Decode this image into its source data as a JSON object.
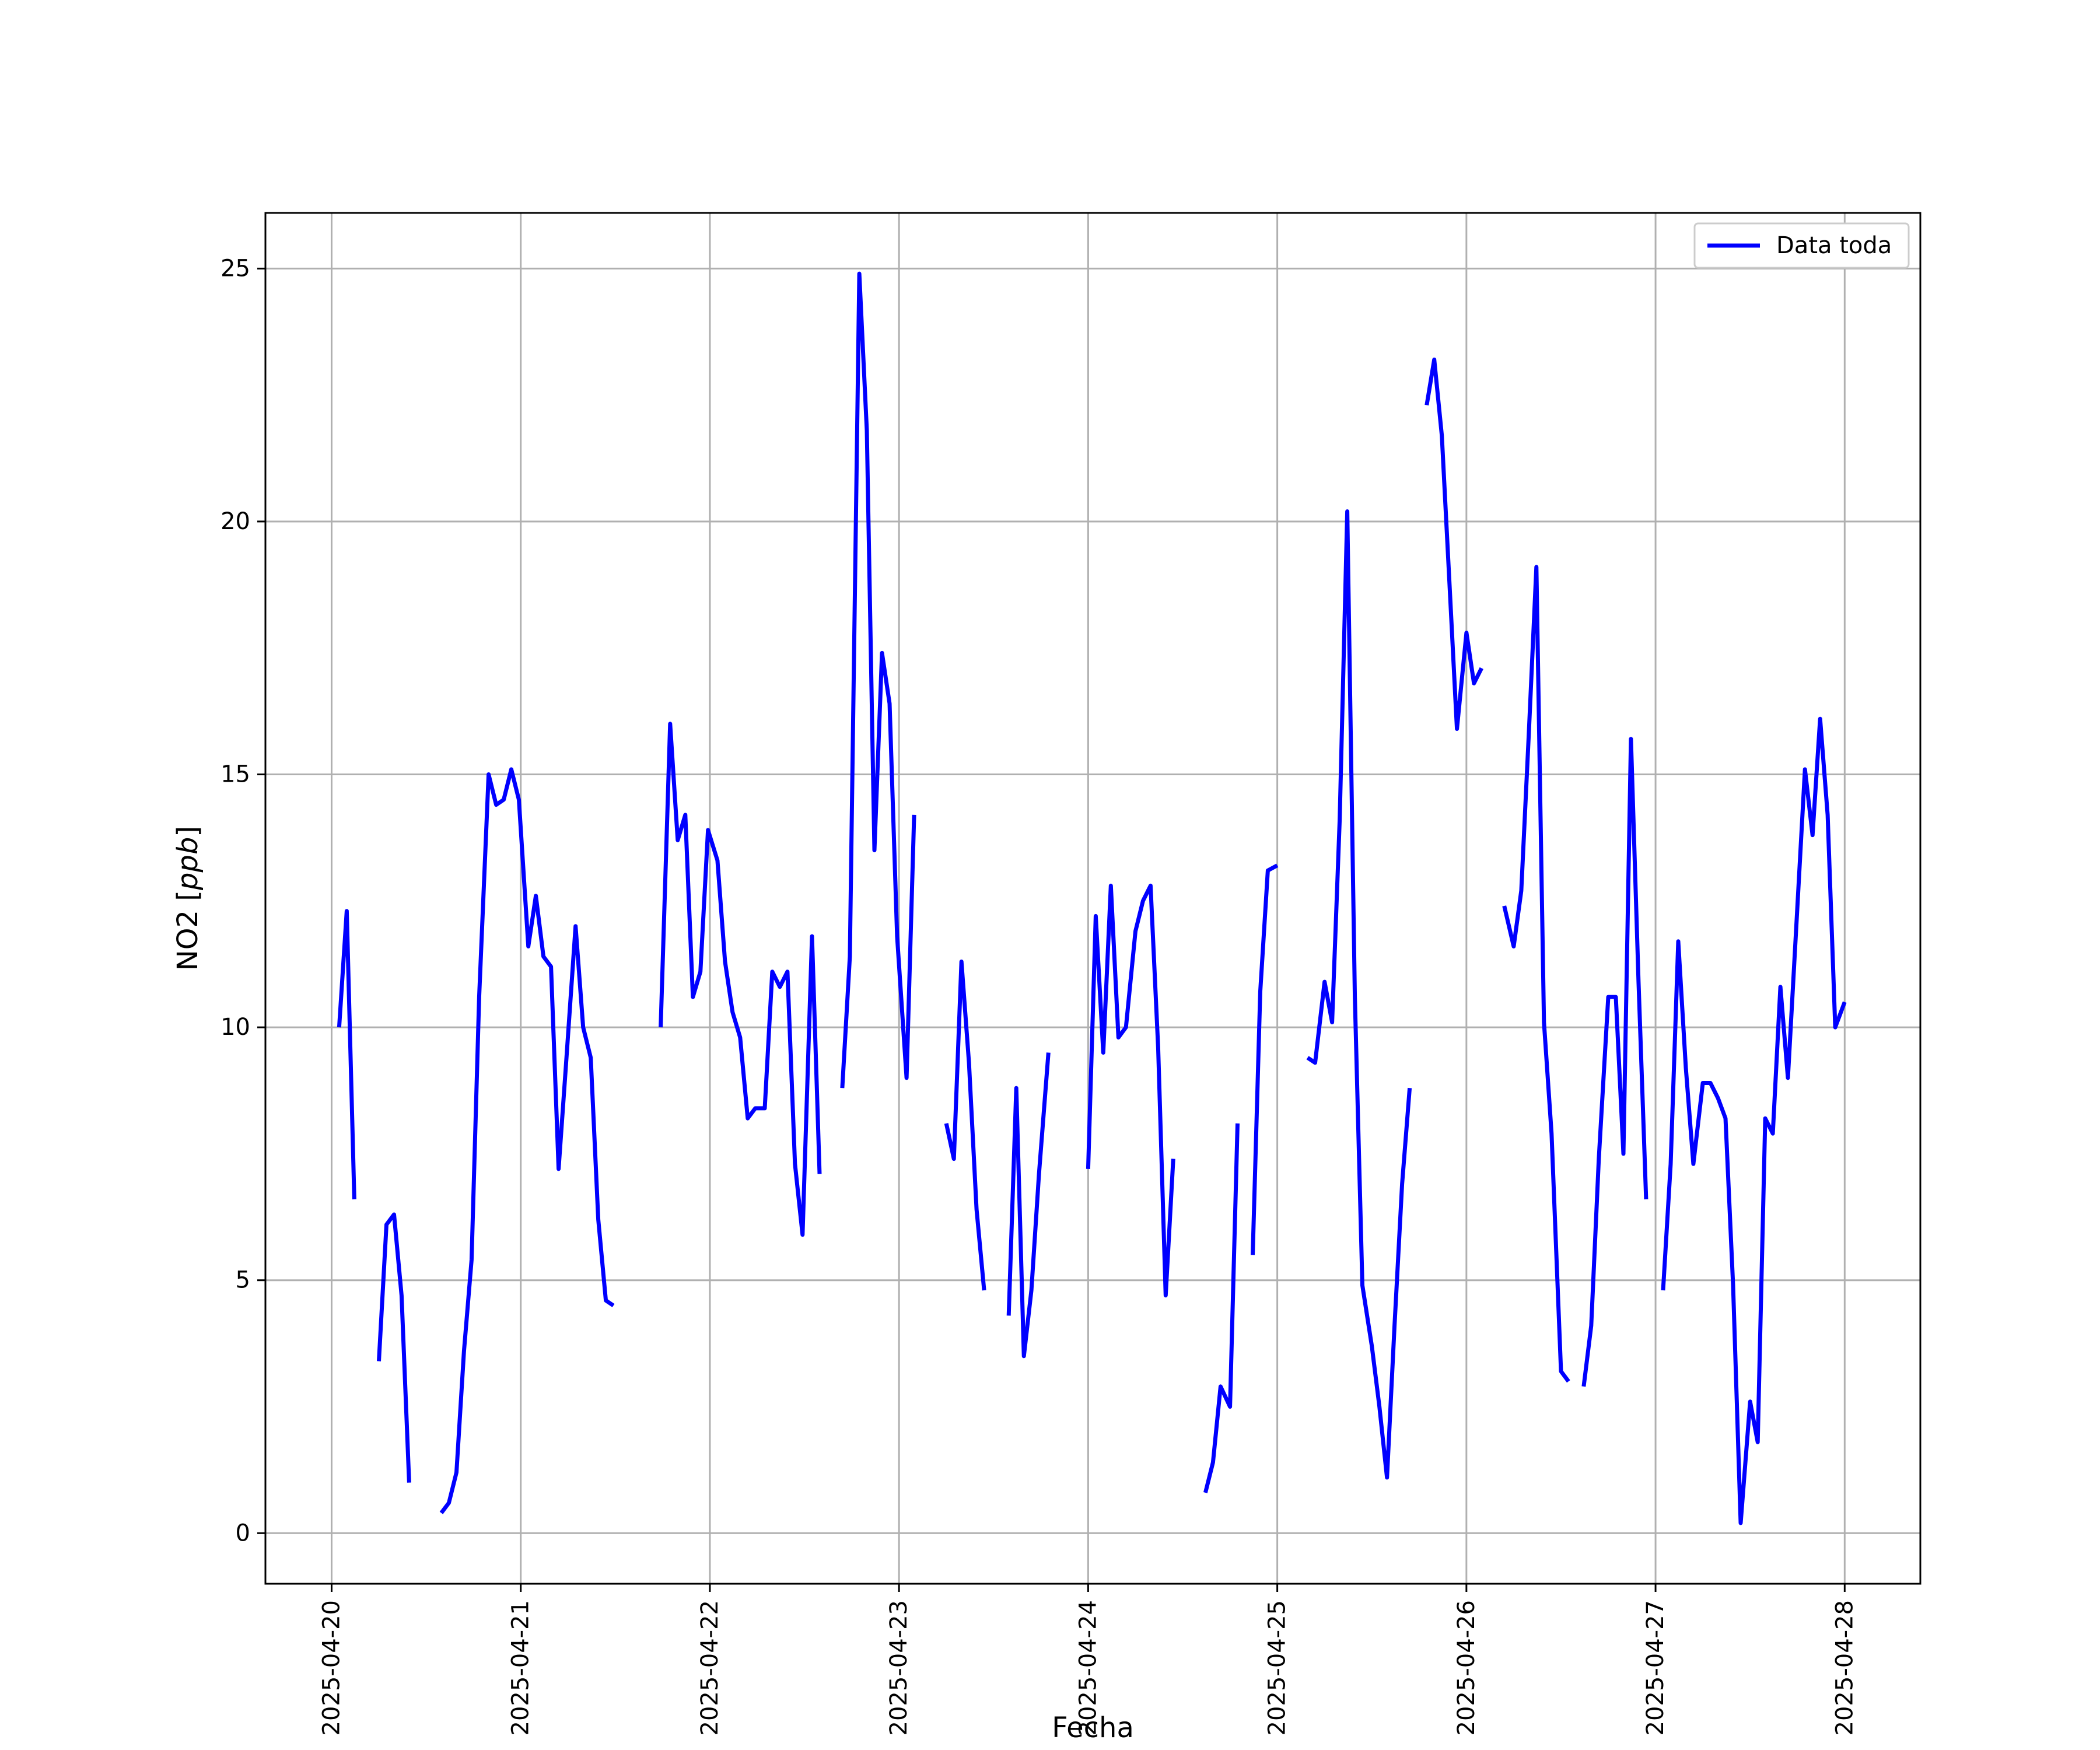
{
  "chart_data": {
    "type": "line",
    "xlabel": "Fecha",
    "ylabel_prefix": "NO2 [",
    "ylabel_unit": "ppb",
    "ylabel_suffix": "]",
    "ylim": [
      -1,
      26.1
    ],
    "xlim_days": [
      -0.35,
      8.4
    ],
    "x_ticks": [
      {
        "pos": 0,
        "label": "2025-04-20"
      },
      {
        "pos": 1,
        "label": "2025-04-21"
      },
      {
        "pos": 2,
        "label": "2025-04-22"
      },
      {
        "pos": 3,
        "label": "2025-04-23"
      },
      {
        "pos": 4,
        "label": "2025-04-24"
      },
      {
        "pos": 5,
        "label": "2025-04-25"
      },
      {
        "pos": 6,
        "label": "2025-04-26"
      },
      {
        "pos": 7,
        "label": "2025-04-27"
      },
      {
        "pos": 8,
        "label": "2025-04-28"
      }
    ],
    "y_ticks": [
      0,
      5,
      10,
      15,
      20,
      25
    ],
    "grid": true,
    "legend_position": "top-right",
    "series": [
      {
        "name": "Data toda",
        "color": "#0000ff",
        "segments": [
          [
            [
              0.04,
              10.0
            ],
            [
              0.08,
              12.3
            ],
            [
              0.12,
              6.6
            ]
          ],
          [
            [
              0.25,
              3.4
            ],
            [
              0.29,
              6.1
            ],
            [
              0.33,
              6.3
            ],
            [
              0.37,
              4.7
            ],
            [
              0.41,
              1.0
            ]
          ],
          [
            [
              0.58,
              0.4
            ],
            [
              0.62,
              0.6
            ],
            [
              0.66,
              1.2
            ],
            [
              0.7,
              3.6
            ],
            [
              0.74,
              5.4
            ],
            [
              0.78,
              10.6
            ],
            [
              0.83,
              15.0
            ],
            [
              0.87,
              14.4
            ],
            [
              0.91,
              14.5
            ],
            [
              0.95,
              15.1
            ],
            [
              0.99,
              14.5
            ],
            [
              1.04,
              11.6
            ],
            [
              1.08,
              12.6
            ],
            [
              1.12,
              11.4
            ],
            [
              1.16,
              11.2
            ],
            [
              1.2,
              7.2
            ],
            [
              1.24,
              9.3
            ],
            [
              1.29,
              12.0
            ],
            [
              1.33,
              10.0
            ],
            [
              1.37,
              9.4
            ],
            [
              1.41,
              6.2
            ],
            [
              1.45,
              4.6
            ],
            [
              1.49,
              4.5
            ]
          ],
          [
            [
              1.74,
              10.0
            ],
            [
              1.79,
              16.0
            ],
            [
              1.83,
              13.7
            ],
            [
              1.87,
              14.2
            ],
            [
              1.91,
              10.6
            ],
            [
              1.95,
              11.1
            ],
            [
              1.99,
              13.9
            ],
            [
              2.04,
              13.3
            ],
            [
              2.08,
              11.3
            ],
            [
              2.12,
              10.3
            ],
            [
              2.16,
              9.8
            ],
            [
              2.2,
              8.2
            ],
            [
              2.24,
              8.4
            ],
            [
              2.29,
              8.4
            ],
            [
              2.33,
              11.1
            ],
            [
              2.37,
              10.8
            ],
            [
              2.41,
              11.1
            ],
            [
              2.45,
              7.3
            ],
            [
              2.49,
              5.9
            ],
            [
              2.54,
              11.8
            ],
            [
              2.58,
              7.1
            ]
          ],
          [
            [
              2.7,
              8.8
            ],
            [
              2.74,
              11.4
            ],
            [
              2.79,
              24.9
            ],
            [
              2.83,
              21.8
            ],
            [
              2.87,
              13.5
            ],
            [
              2.91,
              17.4
            ],
            [
              2.95,
              16.4
            ],
            [
              2.99,
              11.8
            ],
            [
              3.04,
              9.0
            ],
            [
              3.08,
              14.2
            ]
          ],
          [
            [
              3.25,
              8.1
            ],
            [
              3.29,
              7.4
            ],
            [
              3.33,
              11.3
            ],
            [
              3.37,
              9.3
            ],
            [
              3.41,
              6.4
            ],
            [
              3.45,
              4.8
            ]
          ],
          [
            [
              3.58,
              4.3
            ],
            [
              3.62,
              8.8
            ],
            [
              3.66,
              3.5
            ],
            [
              3.7,
              4.8
            ],
            [
              3.74,
              7.1
            ],
            [
              3.79,
              9.5
            ]
          ],
          [
            [
              4.0,
              7.2
            ],
            [
              4.04,
              12.2
            ],
            [
              4.08,
              9.5
            ],
            [
              4.12,
              12.8
            ],
            [
              4.16,
              9.8
            ],
            [
              4.2,
              10.0
            ],
            [
              4.25,
              11.9
            ],
            [
              4.29,
              12.5
            ],
            [
              4.33,
              12.8
            ],
            [
              4.37,
              9.6
            ],
            [
              4.41,
              4.7
            ],
            [
              4.45,
              7.4
            ]
          ],
          [
            [
              4.62,
              0.8
            ],
            [
              4.66,
              1.4
            ],
            [
              4.7,
              2.9
            ],
            [
              4.75,
              2.5
            ],
            [
              4.79,
              8.1
            ]
          ],
          [
            [
              4.87,
              5.5
            ],
            [
              4.91,
              10.7
            ],
            [
              4.95,
              13.1
            ],
            [
              5.0,
              13.2
            ]
          ],
          [
            [
              5.16,
              9.4
            ],
            [
              5.2,
              9.3
            ],
            [
              5.25,
              10.9
            ],
            [
              5.29,
              10.1
            ],
            [
              5.33,
              14.1
            ],
            [
              5.37,
              20.2
            ],
            [
              5.41,
              10.6
            ],
            [
              5.45,
              4.9
            ],
            [
              5.5,
              3.7
            ],
            [
              5.54,
              2.5
            ],
            [
              5.58,
              1.1
            ],
            [
              5.62,
              4.1
            ],
            [
              5.66,
              6.9
            ],
            [
              5.7,
              8.8
            ]
          ],
          [
            [
              5.79,
              22.3
            ],
            [
              5.83,
              23.2
            ],
            [
              5.87,
              21.7
            ],
            [
              5.91,
              18.8
            ],
            [
              5.95,
              15.9
            ],
            [
              6.0,
              17.8
            ],
            [
              6.04,
              16.8
            ],
            [
              6.08,
              17.1
            ]
          ],
          [
            [
              6.2,
              12.4
            ],
            [
              6.25,
              11.6
            ],
            [
              6.29,
              12.7
            ],
            [
              6.33,
              15.8
            ],
            [
              6.37,
              19.1
            ],
            [
              6.41,
              10.1
            ],
            [
              6.45,
              7.9
            ],
            [
              6.5,
              3.2
            ],
            [
              6.54,
              3.0
            ]
          ],
          [
            [
              6.62,
              2.9
            ],
            [
              6.66,
              4.1
            ],
            [
              6.7,
              7.4
            ],
            [
              6.75,
              10.6
            ],
            [
              6.79,
              10.6
            ],
            [
              6.83,
              7.5
            ],
            [
              6.87,
              15.7
            ],
            [
              6.91,
              10.9
            ],
            [
              6.95,
              6.6
            ]
          ],
          [
            [
              7.04,
              4.8
            ],
            [
              7.08,
              7.3
            ],
            [
              7.12,
              11.7
            ],
            [
              7.16,
              9.2
            ],
            [
              7.2,
              7.3
            ],
            [
              7.25,
              8.9
            ],
            [
              7.29,
              8.9
            ],
            [
              7.33,
              8.6
            ],
            [
              7.37,
              8.2
            ],
            [
              7.41,
              4.9
            ],
            [
              7.45,
              0.2
            ],
            [
              7.5,
              2.6
            ],
            [
              7.54,
              1.8
            ],
            [
              7.58,
              8.2
            ],
            [
              7.62,
              7.9
            ],
            [
              7.66,
              10.8
            ],
            [
              7.7,
              9.0
            ],
            [
              7.75,
              12.4
            ],
            [
              7.79,
              15.1
            ],
            [
              7.83,
              13.8
            ],
            [
              7.87,
              16.1
            ],
            [
              7.91,
              14.2
            ],
            [
              7.95,
              10.0
            ],
            [
              8.0,
              10.5
            ]
          ]
        ]
      }
    ]
  }
}
